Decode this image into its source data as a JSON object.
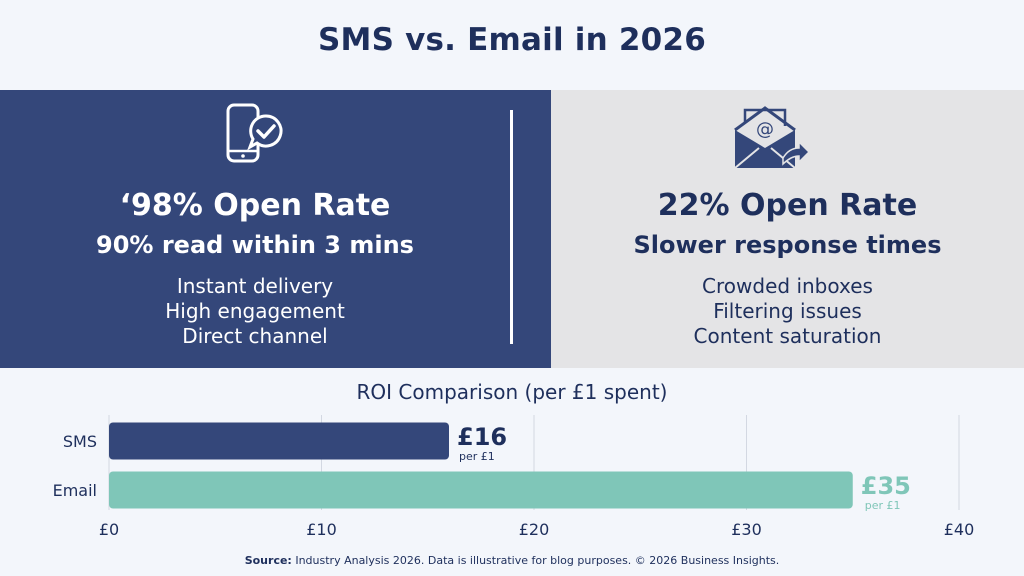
{
  "title": "SMS vs. Email in 2026",
  "sms_panel": {
    "icon": "smartphone-chat-check-icon",
    "open_rate": "‘98% Open Rate",
    "subhead": "90% read within 3 mins",
    "features": [
      "Instant delivery",
      "High engagement",
      "Direct channel"
    ]
  },
  "email_panel": {
    "icon": "envelope-at-forward-icon",
    "open_rate": "22% Open Rate",
    "subhead": "Slower response times",
    "features": [
      "Crowded inboxes",
      "Filtering issues",
      "Content saturation"
    ]
  },
  "colors": {
    "sms_panel_bg": "#34477a",
    "email_panel_bg": "#e4e4e6",
    "sms_bar": "#34477a",
    "email_bar": "#7fc6b8",
    "title_text": "#1e2f5c"
  },
  "chart_data": {
    "type": "bar",
    "orientation": "horizontal",
    "title": "ROI Comparison (per £1 spent)",
    "categories": [
      "SMS",
      "Email"
    ],
    "values": [
      16,
      35
    ],
    "value_labels": [
      "£16",
      "£35"
    ],
    "value_sublabel": "per £1",
    "xlim": [
      0,
      40
    ],
    "x_ticks": [
      0,
      10,
      20,
      30,
      40
    ],
    "x_tick_labels": [
      "£0",
      "£10",
      "£20",
      "£30",
      "£40"
    ],
    "grid": true
  },
  "source": {
    "label": "Source:",
    "text": "Industry Analysis 2026. Data is illustrative for blog purposes. © 2026 Business Insights."
  }
}
